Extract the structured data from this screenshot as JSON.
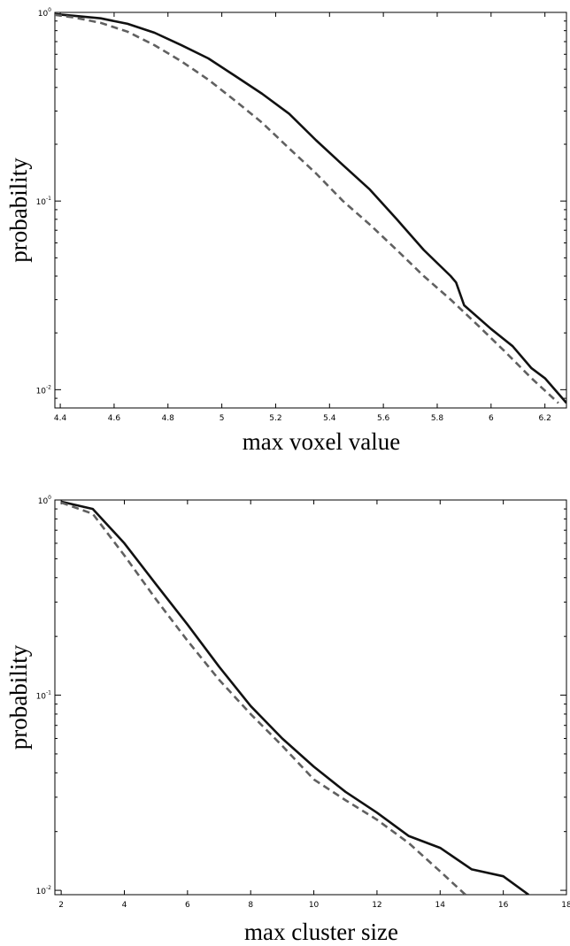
{
  "chart_data": [
    {
      "type": "line",
      "title": "",
      "xlabel": "max voxel value",
      "ylabel": "probability",
      "xlim": [
        4.38,
        6.28
      ],
      "ylim": [
        0.008,
        1.0
      ],
      "yscale": "log",
      "grid": false,
      "xticks": [
        "4.4",
        "4.6",
        "4.8",
        "5",
        "5.2",
        "5.4",
        "5.6",
        "5.8",
        "6",
        "6.2"
      ],
      "xtick_values": [
        4.4,
        4.6,
        4.8,
        5.0,
        5.2,
        5.4,
        5.6,
        5.8,
        6.0,
        6.2
      ],
      "yticks": [
        {
          "value": 1,
          "base": "10",
          "exp": "0"
        },
        {
          "value": 0.1,
          "base": "10",
          "exp": "-1"
        },
        {
          "value": 0.01,
          "base": "10",
          "exp": "-2"
        }
      ],
      "series": [
        {
          "style": "solid",
          "color": "#111111",
          "x": [
            4.38,
            4.45,
            4.55,
            4.65,
            4.75,
            4.85,
            4.95,
            5.05,
            5.15,
            5.25,
            5.35,
            5.45,
            5.55,
            5.65,
            5.75,
            5.85,
            5.87,
            5.9,
            6.0,
            6.08,
            6.15,
            6.2,
            6.28
          ],
          "y": [
            0.98,
            0.96,
            0.93,
            0.87,
            0.78,
            0.67,
            0.57,
            0.46,
            0.37,
            0.29,
            0.21,
            0.155,
            0.115,
            0.08,
            0.055,
            0.04,
            0.037,
            0.028,
            0.021,
            0.017,
            0.013,
            0.0115,
            0.0085
          ]
        },
        {
          "style": "dashed",
          "color": "#606060",
          "x": [
            4.38,
            4.45,
            4.55,
            4.65,
            4.75,
            4.85,
            4.95,
            5.05,
            5.15,
            5.25,
            5.35,
            5.45,
            5.55,
            5.65,
            5.75,
            5.85,
            5.95,
            6.05,
            6.15,
            6.25
          ],
          "y": [
            0.97,
            0.94,
            0.88,
            0.79,
            0.67,
            0.55,
            0.44,
            0.34,
            0.26,
            0.19,
            0.14,
            0.1,
            0.075,
            0.055,
            0.04,
            0.03,
            0.022,
            0.016,
            0.0115,
            0.0085
          ]
        }
      ]
    },
    {
      "type": "line",
      "title": "",
      "xlabel": "max cluster size",
      "ylabel": "probability",
      "xlim": [
        1.8,
        18
      ],
      "ylim": [
        0.0095,
        1.0
      ],
      "yscale": "log",
      "grid": false,
      "xticks": [
        "2",
        "4",
        "6",
        "8",
        "10",
        "12",
        "14",
        "16",
        "18"
      ],
      "xtick_values": [
        2,
        4,
        6,
        8,
        10,
        12,
        14,
        16,
        18
      ],
      "yticks": [
        {
          "value": 1,
          "base": "10",
          "exp": "0"
        },
        {
          "value": 0.1,
          "base": "10",
          "exp": "-1"
        },
        {
          "value": 0.01,
          "base": "10",
          "exp": "-2"
        }
      ],
      "series": [
        {
          "style": "solid",
          "color": "#111111",
          "x": [
            2,
            3,
            4,
            5,
            6,
            7,
            8,
            9,
            10,
            11,
            12,
            13,
            14,
            15,
            16,
            16.8
          ],
          "y": [
            0.98,
            0.9,
            0.6,
            0.37,
            0.23,
            0.14,
            0.088,
            0.06,
            0.043,
            0.032,
            0.025,
            0.019,
            0.0165,
            0.0128,
            0.0118,
            0.0095
          ]
        },
        {
          "style": "dashed",
          "color": "#606060",
          "x": [
            2,
            3,
            4,
            5,
            6,
            7,
            8,
            9,
            10,
            11,
            12,
            13,
            14,
            14.8
          ],
          "y": [
            0.97,
            0.85,
            0.52,
            0.31,
            0.19,
            0.12,
            0.08,
            0.055,
            0.037,
            0.029,
            0.023,
            0.0175,
            0.0125,
            0.0095
          ]
        }
      ]
    }
  ]
}
